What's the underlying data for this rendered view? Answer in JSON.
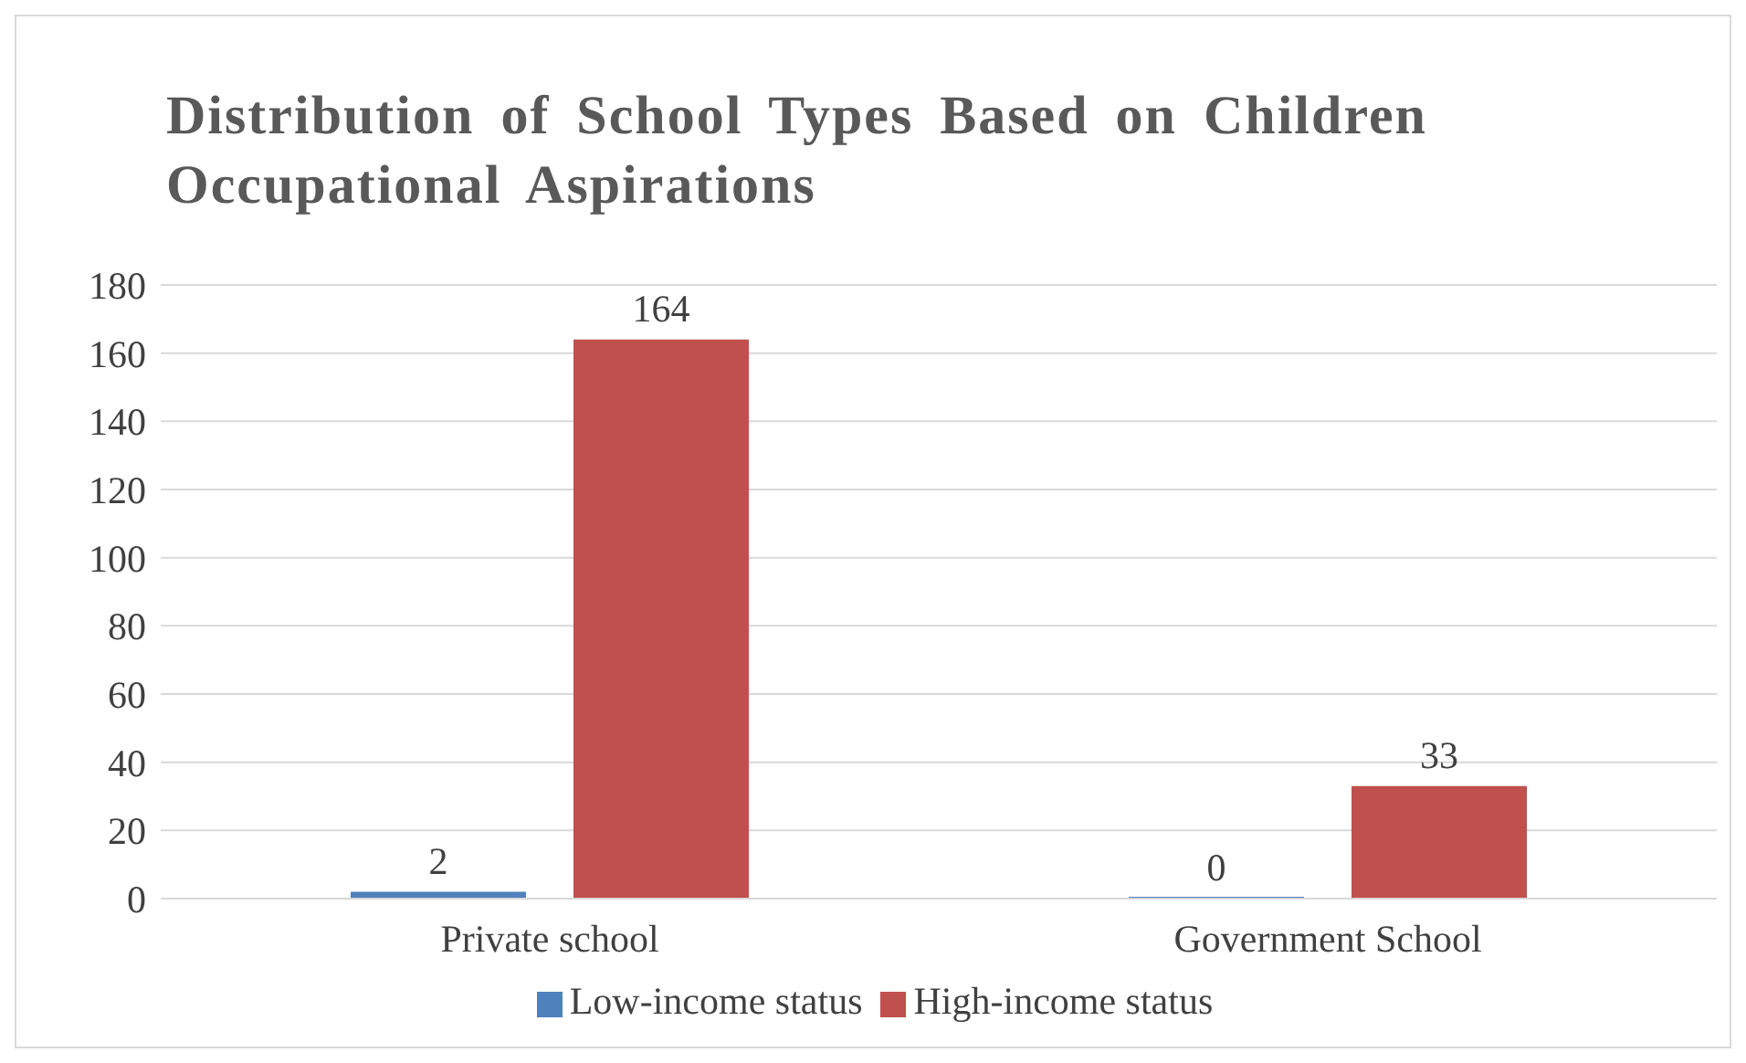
{
  "chart_data": {
    "type": "bar",
    "title": "Distribution of School Types Based on Children Occupational Aspirations",
    "categories": [
      "Private school",
      "Government School"
    ],
    "series": [
      {
        "name": "Low-income status",
        "color": "#4f81bd",
        "values": [
          2,
          0
        ]
      },
      {
        "name": "High-income status",
        "color": "#c0504d",
        "values": [
          164,
          33
        ]
      }
    ],
    "ylim": [
      0,
      180
    ],
    "yticks": [
      0,
      20,
      40,
      60,
      80,
      100,
      120,
      140,
      160,
      180
    ],
    "grid": "y",
    "legend": "bottom",
    "data_labels": true
  }
}
